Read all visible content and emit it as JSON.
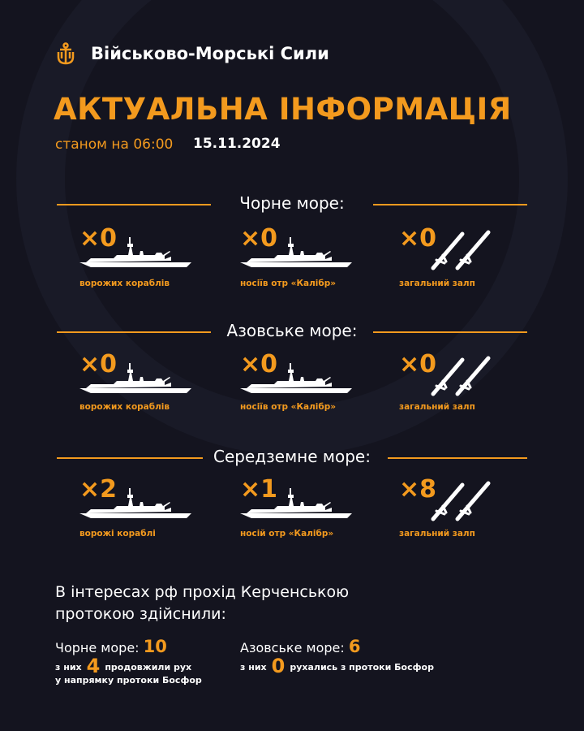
{
  "header": {
    "brand": "Військово-Морські Сили",
    "logo_icon": "navy-trident-anchor-icon",
    "title": "АКТУАЛЬНА ІНФОРМАЦІЯ",
    "as_of_label": "станом на 06:00",
    "date": "15.11.2024"
  },
  "colors": {
    "background": "#14141f",
    "accent": "#f39a1e",
    "text": "#ffffff"
  },
  "sections": [
    {
      "title": "Чорне море:",
      "items": [
        {
          "count": "×0",
          "label": "ворожих кораблів",
          "icon": "warship-icon"
        },
        {
          "count": "×0",
          "label": "носіїв отр «Калібр»",
          "icon": "warship-icon"
        },
        {
          "count": "×0",
          "label": "загальний залп",
          "icon": "missiles-icon"
        }
      ]
    },
    {
      "title": "Азовське море:",
      "items": [
        {
          "count": "×0",
          "label": "ворожих кораблів",
          "icon": "warship-icon"
        },
        {
          "count": "×0",
          "label": "носіїв отр «Калібр»",
          "icon": "warship-icon"
        },
        {
          "count": "×0",
          "label": "загальний залп",
          "icon": "missiles-icon"
        }
      ]
    },
    {
      "title": "Середземне море:",
      "items": [
        {
          "count": "×2",
          "label": "ворожі кораблі",
          "icon": "warship-icon"
        },
        {
          "count": "×1",
          "label": "носій отр «Калібр»",
          "icon": "warship-icon"
        },
        {
          "count": "×8",
          "label": "загальний залп",
          "icon": "missiles-icon"
        }
      ]
    }
  ],
  "kerch": {
    "line1": "В інтересах рф прохід Керченською",
    "line2": "протокою здійснили:",
    "black": {
      "label": "Чорне море:",
      "value": "10",
      "pre": "з них",
      "num": "4",
      "post": "продовжили рух",
      "line2": "у напрямку протоки Босфор"
    },
    "azov": {
      "label": "Азовське море:",
      "value": "6",
      "pre": "з них",
      "num": "0",
      "post": "рухались з протоки Босфор"
    }
  }
}
